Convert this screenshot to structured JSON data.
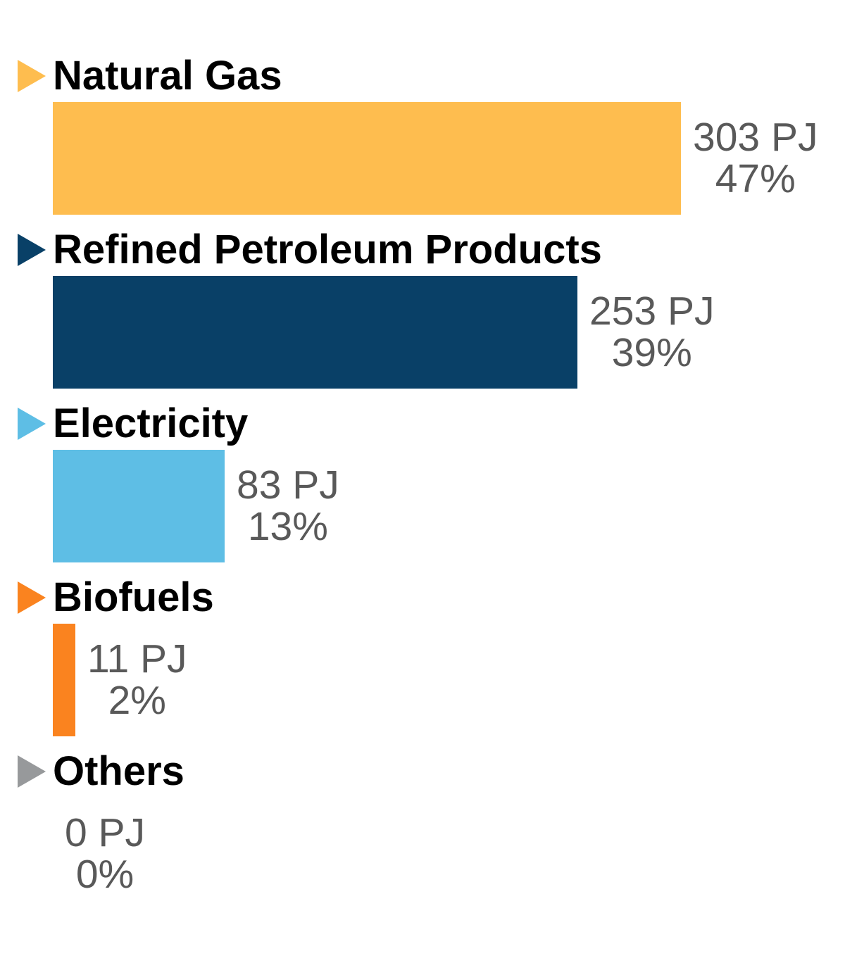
{
  "chart_data": {
    "type": "bar",
    "orientation": "horizontal",
    "unit": "PJ",
    "value_axis_max": 303,
    "grid": false,
    "legend": "none",
    "categories": [
      "Natural Gas",
      "Refined Petroleum Products",
      "Electricity",
      "Biofuels",
      "Others"
    ],
    "values": [
      303,
      253,
      83,
      11,
      0
    ],
    "percentages": [
      47,
      39,
      13,
      2,
      0
    ],
    "items": [
      {
        "label": "Natural Gas",
        "value": 303,
        "percent": 47,
        "value_label": "303 PJ",
        "percent_label": "47%",
        "color": "#FEBD4F"
      },
      {
        "label": "Refined Petroleum Products",
        "value": 253,
        "percent": 39,
        "value_label": "253 PJ",
        "percent_label": "39%",
        "color": "#094067"
      },
      {
        "label": "Electricity",
        "value": 83,
        "percent": 13,
        "value_label": "83 PJ",
        "percent_label": "13%",
        "color": "#5EBEE5"
      },
      {
        "label": "Biofuels",
        "value": 11,
        "percent": 2,
        "value_label": "11 PJ",
        "percent_label": "2%",
        "color": "#FA831F"
      },
      {
        "label": "Others",
        "value": 0,
        "percent": 0,
        "value_label": "0 PJ",
        "percent_label": "0%",
        "color": "#97999B"
      }
    ],
    "value_text_color": "#595959",
    "label_text_color": "#000000",
    "background_color": "#FFFFFF"
  }
}
